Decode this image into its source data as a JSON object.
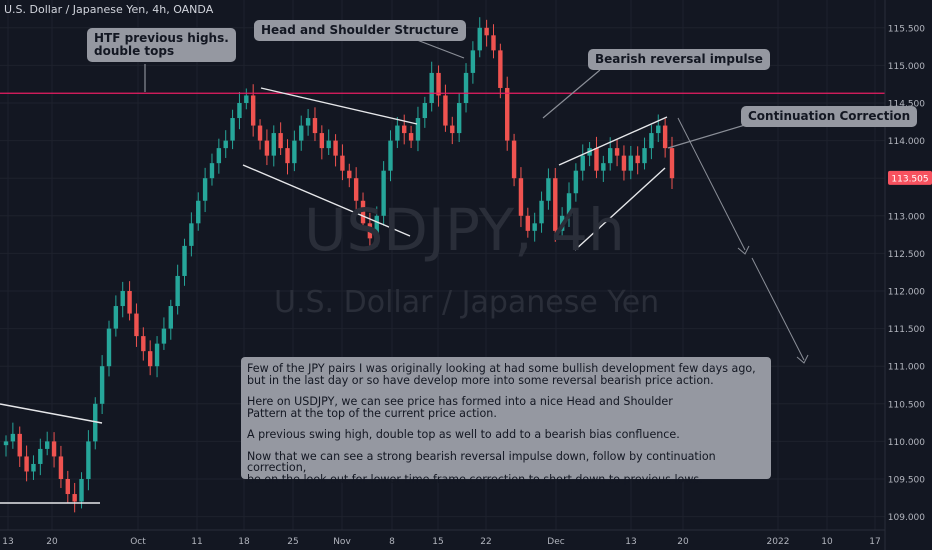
{
  "header": "U.S. Dollar / Japanese Yen, 4h, OANDA",
  "watermark": {
    "symbol": "USDJPY, 4h",
    "name": "U.S. Dollar / Japanese Yen"
  },
  "price_badge": {
    "value": "113.505",
    "color": "#f7525f"
  },
  "resistance_color": "#e91e63",
  "callouts": {
    "htf": "HTF previous highs.\ndouble tops",
    "head_shoulder": "Head and Shoulder Structure",
    "bearish": "Bearish reversal impulse",
    "continuation": "Continuation Correction"
  },
  "note": {
    "p1": "Few of the JPY pairs I was originally looking at had some bullish development few days ago,\nbut in the last day or so have develop more into some reversal bearish price action.",
    "p2": "Here on USDJPY, we can see price has formed into a nice Head and Shoulder\nPattern at the top of the current price action.",
    "p3": "A previous swing high, double top as well to add to a bearish bias confluence.",
    "p4": "Now that we can see a strong bearish reversal impulse down, follow by continuation correction,\nbe on the look out for lower time frame correction to short down to previous lows."
  },
  "chart_data": {
    "type": "line",
    "up_color": "#26a69a",
    "down_color": "#ef5350",
    "y_ticks": [
      115.5,
      115.0,
      114.5,
      114.0,
      113.5,
      113.0,
      112.5,
      112.0,
      111.5,
      111.0,
      110.5,
      110.0,
      109.5,
      109.0
    ],
    "y_tick_labels": [
      "115.500",
      "115.000",
      "114.500",
      "114.000",
      "113.500",
      "113.000",
      "112.500",
      "112.000",
      "111.500",
      "111.000",
      "110.500",
      "110.000",
      "109.500",
      "109.000"
    ],
    "x_ticks": [
      "13",
      "20",
      "Oct",
      "11",
      "18",
      "25",
      "Nov",
      "8",
      "15",
      "22",
      "Dec",
      "13",
      "20",
      "2022",
      "10",
      "17"
    ],
    "resistance": 114.63,
    "series": [
      {
        "values": [
          110.0,
          110.1,
          109.8,
          109.6,
          109.7,
          109.9,
          110.0,
          109.8,
          109.5,
          109.3,
          109.2,
          109.5,
          110.0,
          110.5,
          111.0,
          111.5,
          111.8,
          112.0,
          111.7,
          111.4,
          111.2,
          111.0,
          111.3,
          111.5,
          111.8,
          112.2,
          112.6,
          112.9,
          113.2,
          113.5,
          113.7,
          113.9,
          114.0,
          114.3,
          114.5,
          114.6,
          114.2,
          114.0,
          113.8,
          114.1,
          113.9,
          113.7,
          114.0,
          114.2,
          114.3,
          114.1,
          113.9,
          114.0,
          113.8,
          113.6,
          113.5,
          113.2,
          112.9,
          112.7,
          113.0,
          113.6,
          114.0,
          114.2,
          114.1,
          114.0,
          114.3,
          114.5,
          114.9,
          114.6,
          114.2,
          114.1,
          114.5,
          114.9,
          115.2,
          115.5,
          115.4,
          115.2,
          114.7,
          114.0,
          113.5,
          113.0,
          112.8,
          112.9,
          113.2,
          113.5,
          112.8,
          113.0,
          113.3,
          113.6,
          113.8,
          113.9,
          113.6,
          113.7,
          113.9,
          113.8,
          113.6,
          113.8,
          113.7,
          113.9,
          114.1,
          114.2,
          113.9,
          113.5
        ]
      }
    ]
  }
}
